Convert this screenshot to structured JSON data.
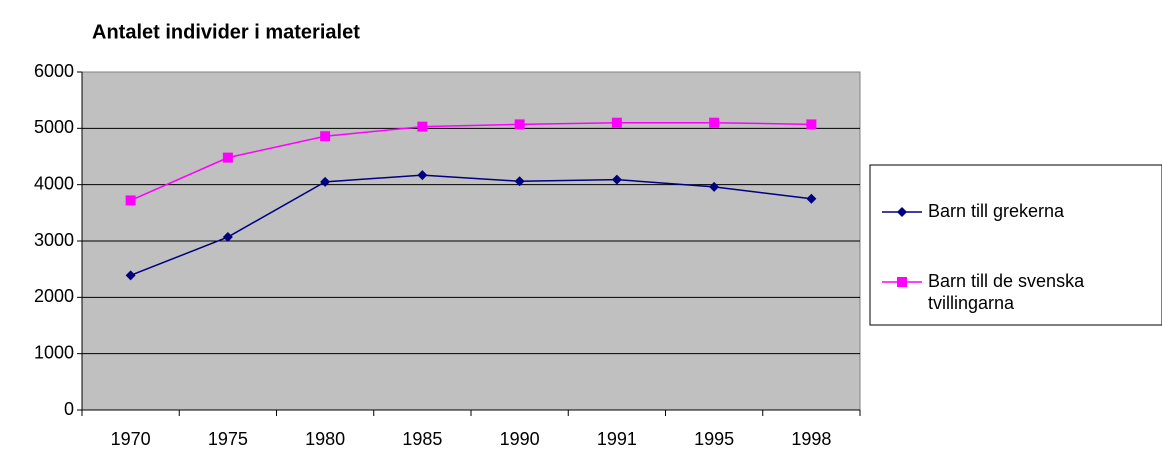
{
  "chart_data": {
    "type": "line",
    "title": "Antalet individer i materialet",
    "categories": [
      "1970",
      "1975",
      "1980",
      "1985",
      "1990",
      "1991",
      "1995",
      "1998"
    ],
    "series": [
      {
        "name": "Barn till grekerna",
        "color": "#000080",
        "marker": "diamond",
        "values": [
          2390,
          3070,
          4050,
          4170,
          4060,
          4090,
          3960,
          3750
        ]
      },
      {
        "name": "Barn till de svenska tvillingarna",
        "color": "#ff00ff",
        "marker": "square",
        "values": [
          3720,
          4480,
          4860,
          5030,
          5070,
          5100,
          5100,
          5070
        ]
      }
    ],
    "ylim": [
      0,
      6000
    ],
    "yticks": [
      0,
      1000,
      2000,
      3000,
      4000,
      5000,
      6000
    ],
    "grid": true,
    "legend": "right"
  }
}
